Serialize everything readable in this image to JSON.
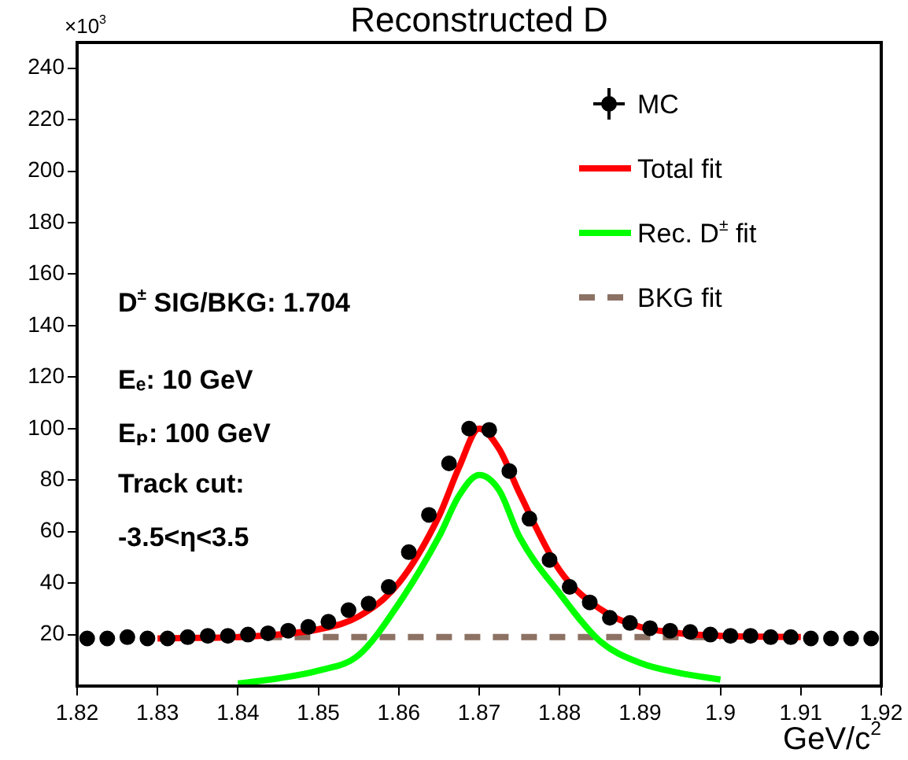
{
  "chart_data": {
    "type": "line",
    "title": "Reconstructed D",
    "xlabel": "GeV/c$^{2}$",
    "xlim": [
      1.82,
      1.92
    ],
    "xticks": [
      1.82,
      1.83,
      1.84,
      1.85,
      1.86,
      1.87,
      1.88,
      1.89,
      1.9,
      1.91,
      1.92
    ],
    "ylim": [
      0,
      250
    ],
    "yticks": [
      20,
      40,
      60,
      80,
      100,
      120,
      140,
      160,
      180,
      200,
      220,
      240
    ],
    "grid": false,
    "legend": "top right",
    "annotations": [
      "×10$^{3}$",
      "D$^{±}$ SIG/BKG: 1.704",
      "Eₑ: 10 GeV",
      "Eₚ: 100 GeV",
      "Track cut:",
      "-3.5<η<3.5"
    ],
    "series": [
      {
        "name": "MC",
        "type": "scatter",
        "marker": "circle",
        "color": "#000000",
        "x": [
          1.82125,
          1.82375,
          1.82625,
          1.82875,
          1.83125,
          1.83375,
          1.83625,
          1.83875,
          1.84125,
          1.84375,
          1.84625,
          1.84875,
          1.85125,
          1.85375,
          1.85625,
          1.85875,
          1.86125,
          1.86375,
          1.86625,
          1.86875,
          1.87125,
          1.87375,
          1.87625,
          1.87875,
          1.88125,
          1.88375,
          1.88625,
          1.88875,
          1.89125,
          1.89375,
          1.89625,
          1.89875,
          1.90125,
          1.90375,
          1.90625,
          1.90875,
          1.91125,
          1.91375,
          1.91625,
          1.91875
        ],
        "values": [
          18.5,
          18.5,
          19,
          18.5,
          18.5,
          19,
          19.5,
          19.5,
          20,
          20.5,
          21.5,
          23,
          25,
          29.5,
          32,
          38.5,
          52,
          66.5,
          86.5,
          100,
          99.5,
          83.5,
          65,
          49,
          38.5,
          32.5,
          26.5,
          24.5,
          22.5,
          21.5,
          21,
          20,
          19.5,
          19.5,
          19,
          19,
          18.5,
          18.5,
          18.5,
          18.5
        ]
      },
      {
        "name": "Total fit",
        "type": "line",
        "line_style": "solid",
        "color": "#ff0000",
        "x": [
          1.83,
          1.835,
          1.84,
          1.845,
          1.85,
          1.855,
          1.86,
          1.865,
          1.8675,
          1.87,
          1.8725,
          1.875,
          1.88,
          1.885,
          1.89,
          1.895,
          1.9,
          1.905,
          1.91
        ],
        "values": [
          18.5,
          18.7,
          19,
          20,
          22,
          27,
          40,
          66,
          85,
          100,
          92,
          75,
          45,
          30,
          23,
          20.5,
          19.5,
          19.2,
          19
        ]
      },
      {
        "name": "Rec. D$^{±}$ fit",
        "type": "line",
        "line_style": "solid",
        "color": "#00ff00",
        "x": [
          1.84,
          1.845,
          1.85,
          1.855,
          1.86,
          1.865,
          1.8675,
          1.87,
          1.8725,
          1.875,
          1.88,
          1.885,
          1.89,
          1.895,
          1.9
        ],
        "values": [
          1,
          3,
          6,
          12,
          32,
          58,
          74,
          82,
          76,
          58,
          36,
          17.5,
          9,
          5,
          2.5
        ]
      },
      {
        "name": "BKG fit",
        "type": "line",
        "line_style": "dashed",
        "color": "#8c7264",
        "x": [
          1.84,
          1.9
        ],
        "values": [
          19,
          19
        ]
      }
    ]
  }
}
